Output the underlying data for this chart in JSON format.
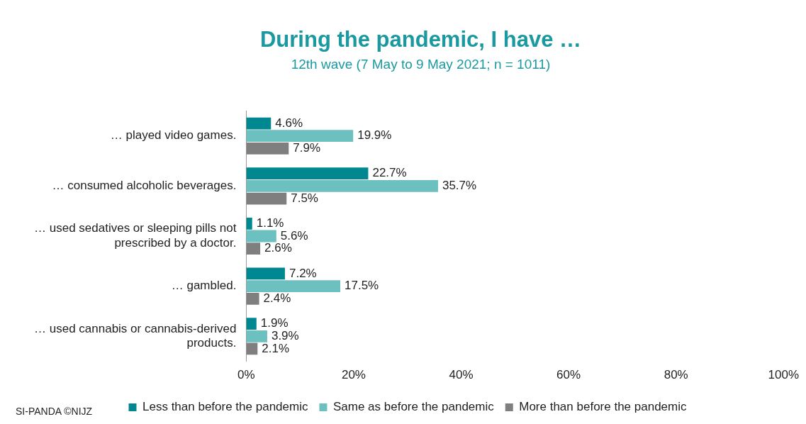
{
  "chart_data": {
    "type": "bar",
    "orientation": "horizontal",
    "title": "During the pandemic, I have …",
    "subtitle": "12th wave (7 May to 9 May 2021; n = 1011)",
    "categories": [
      "… played video games.",
      "… consumed alcoholic beverages.",
      "… used sedatives or sleeping pills not prescribed by a doctor.",
      "… gambled.",
      "… used cannabis or cannabis-derived products."
    ],
    "series": [
      {
        "name": "Less than before the pandemic",
        "color": "#00878f",
        "values": [
          4.6,
          22.7,
          1.1,
          7.2,
          1.9
        ],
        "value_labels": [
          "4.6%",
          "22.7%",
          "1.1%",
          "7.2%",
          "1.9%"
        ]
      },
      {
        "name": "Same as before the pandemic",
        "color": "#6cc0c0",
        "values": [
          19.9,
          35.7,
          5.6,
          17.5,
          3.9
        ],
        "value_labels": [
          "19.9%",
          "35.7%",
          "5.6%",
          "17.5%",
          "3.9%"
        ]
      },
      {
        "name": "More than before the pandemic",
        "color": "#7f7f7f",
        "values": [
          7.9,
          7.5,
          2.6,
          2.4,
          2.1
        ],
        "value_labels": [
          "7.9%",
          "7.5%",
          "2.6%",
          "2.4%",
          "2.1%"
        ]
      }
    ],
    "xlim": [
      0,
      100
    ],
    "xticks": [
      {
        "value": 0,
        "label": "0%"
      },
      {
        "value": 20,
        "label": "20%"
      },
      {
        "value": 40,
        "label": "40%"
      },
      {
        "value": 60,
        "label": "60%"
      },
      {
        "value": 80,
        "label": "80%"
      },
      {
        "value": 100,
        "label": "100%"
      }
    ],
    "grid": false,
    "legend": "bottom",
    "annotations": [
      "SI-PANDA ©NIJZ"
    ]
  }
}
